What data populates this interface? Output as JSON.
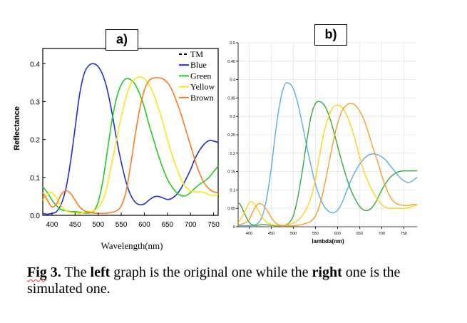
{
  "panel_labels": {
    "a": "a)",
    "b": "b)"
  },
  "caption": {
    "fig": "Fig",
    "num": " 3.",
    "t1": " The ",
    "left": "left",
    "t2": " graph is the original one while the ",
    "right": "right",
    "t3": " one is the simulated one."
  },
  "chart_data": [
    {
      "type": "line",
      "title": "",
      "xlabel": "Wavelength(nm)",
      "ylabel": "Reflectance",
      "xlim": [
        380,
        760
      ],
      "ylim": [
        0,
        0.44
      ],
      "xticks": [
        "400",
        "450",
        "500",
        "550",
        "600",
        "650",
        "700",
        "750"
      ],
      "yticks": [
        "0.0",
        "0.1",
        "0.2",
        "0.3",
        "0.4"
      ],
      "legend_position": "top-right",
      "legend": [
        "TM",
        "Blue",
        "Green",
        "Yellow",
        "Brown"
      ],
      "series": [
        {
          "name": "TM",
          "color": "#000000",
          "dashed": true,
          "x": [],
          "y": []
        },
        {
          "name": "Blue",
          "color": "#1f2fd0",
          "x": [
            380,
            390,
            400,
            410,
            420,
            430,
            440,
            450,
            460,
            470,
            480,
            490,
            500,
            510,
            520,
            530,
            540,
            550,
            560,
            570,
            580,
            590,
            600,
            610,
            620,
            630,
            640,
            650,
            660,
            670,
            680,
            690,
            700,
            710,
            720,
            730,
            740,
            750,
            760
          ],
          "y": [
            0.005,
            0.003,
            0.005,
            0.01,
            0.03,
            0.07,
            0.14,
            0.23,
            0.32,
            0.375,
            0.395,
            0.4,
            0.392,
            0.37,
            0.33,
            0.27,
            0.2,
            0.14,
            0.09,
            0.055,
            0.035,
            0.028,
            0.03,
            0.04,
            0.048,
            0.05,
            0.046,
            0.042,
            0.045,
            0.055,
            0.072,
            0.095,
            0.12,
            0.15,
            0.172,
            0.188,
            0.197,
            0.196,
            0.192
          ]
        },
        {
          "name": "Green",
          "color": "#22cc22",
          "x": [
            380,
            390,
            400,
            410,
            420,
            430,
            440,
            450,
            460,
            470,
            480,
            490,
            500,
            510,
            520,
            530,
            540,
            550,
            560,
            570,
            580,
            590,
            600,
            610,
            620,
            630,
            640,
            650,
            660,
            670,
            680,
            690,
            700,
            710,
            720,
            730,
            740,
            750,
            760
          ],
          "y": [
            0.075,
            0.06,
            0.04,
            0.025,
            0.015,
            0.012,
            0.01,
            0.01,
            0.008,
            0.006,
            0.006,
            0.01,
            0.035,
            0.09,
            0.17,
            0.25,
            0.31,
            0.345,
            0.36,
            0.358,
            0.345,
            0.32,
            0.285,
            0.24,
            0.2,
            0.16,
            0.125,
            0.095,
            0.075,
            0.06,
            0.052,
            0.052,
            0.06,
            0.072,
            0.082,
            0.09,
            0.1,
            0.115,
            0.13
          ]
        },
        {
          "name": "Yellow",
          "color": "#ffe21a",
          "x": [
            380,
            390,
            400,
            410,
            420,
            430,
            440,
            450,
            460,
            470,
            480,
            490,
            500,
            510,
            520,
            530,
            540,
            550,
            560,
            570,
            580,
            590,
            600,
            610,
            620,
            630,
            640,
            650,
            660,
            670,
            680,
            690,
            700,
            710,
            720,
            730,
            740,
            750,
            760
          ],
          "y": [
            0.04,
            0.055,
            0.06,
            0.045,
            0.025,
            0.012,
            0.008,
            0.006,
            0.005,
            0.008,
            0.01,
            0.012,
            0.02,
            0.04,
            0.08,
            0.14,
            0.2,
            0.26,
            0.31,
            0.345,
            0.36,
            0.365,
            0.36,
            0.345,
            0.32,
            0.285,
            0.245,
            0.2,
            0.16,
            0.125,
            0.095,
            0.075,
            0.065,
            0.062,
            0.062,
            0.06,
            0.055,
            0.052,
            0.055
          ]
        },
        {
          "name": "Brown",
          "color": "#ff7b1a",
          "x": [
            380,
            390,
            400,
            410,
            420,
            430,
            440,
            450,
            460,
            470,
            480,
            490,
            500,
            510,
            520,
            530,
            540,
            550,
            560,
            570,
            580,
            590,
            600,
            610,
            620,
            630,
            640,
            650,
            660,
            670,
            680,
            690,
            700,
            710,
            720,
            730,
            740,
            750,
            760
          ],
          "y": [
            0.06,
            0.04,
            0.022,
            0.03,
            0.055,
            0.065,
            0.058,
            0.04,
            0.022,
            0.012,
            0.008,
            0.006,
            0.005,
            0.005,
            0.006,
            0.008,
            0.012,
            0.025,
            0.06,
            0.13,
            0.21,
            0.28,
            0.33,
            0.355,
            0.362,
            0.363,
            0.36,
            0.35,
            0.33,
            0.3,
            0.265,
            0.225,
            0.185,
            0.145,
            0.11,
            0.085,
            0.07,
            0.062,
            0.06
          ]
        }
      ]
    },
    {
      "type": "line",
      "title": "",
      "xlabel": "lambda(nm)",
      "ylabel": "",
      "xlim": [
        375,
        780
      ],
      "ylim": [
        0,
        0.5
      ],
      "xticks": [
        "400",
        "450",
        "500",
        "550",
        "600",
        "650",
        "700",
        "750"
      ],
      "yticks": [
        "0",
        "0.05",
        "0.1",
        "0.15",
        "0.2",
        "0.25",
        "0.3",
        "0.35",
        "0.4",
        "0.45",
        "0.5"
      ],
      "grid": true,
      "series": [
        {
          "color": "#5aaee0",
          "x": [
            375,
            390,
            400,
            410,
            420,
            430,
            440,
            450,
            460,
            470,
            480,
            490,
            500,
            510,
            520,
            530,
            540,
            550,
            560,
            570,
            580,
            590,
            600,
            610,
            620,
            630,
            640,
            650,
            660,
            670,
            680,
            690,
            700,
            710,
            720,
            730,
            740,
            750,
            760,
            770,
            780
          ],
          "y": [
            0.003,
            0.003,
            0.003,
            0.004,
            0.01,
            0.03,
            0.08,
            0.16,
            0.26,
            0.34,
            0.385,
            0.39,
            0.375,
            0.335,
            0.28,
            0.22,
            0.165,
            0.115,
            0.08,
            0.055,
            0.042,
            0.038,
            0.045,
            0.065,
            0.095,
            0.125,
            0.15,
            0.17,
            0.185,
            0.195,
            0.198,
            0.196,
            0.19,
            0.18,
            0.165,
            0.15,
            0.135,
            0.125,
            0.12,
            0.125,
            0.135
          ]
        },
        {
          "color": "#3aa83a",
          "x": [
            375,
            380,
            390,
            400,
            410,
            420,
            430,
            440,
            450,
            460,
            470,
            480,
            490,
            500,
            510,
            520,
            530,
            540,
            550,
            560,
            570,
            580,
            590,
            600,
            610,
            620,
            630,
            640,
            650,
            660,
            670,
            680,
            690,
            700,
            710,
            720,
            730,
            740,
            750,
            760,
            770,
            780
          ],
          "y": [
            0.065,
            0.06,
            0.035,
            0.012,
            0.004,
            0.004,
            0.006,
            0.005,
            0.004,
            0.003,
            0.003,
            0.004,
            0.01,
            0.03,
            0.08,
            0.15,
            0.23,
            0.3,
            0.335,
            0.34,
            0.33,
            0.305,
            0.265,
            0.22,
            0.175,
            0.135,
            0.1,
            0.075,
            0.055,
            0.045,
            0.045,
            0.055,
            0.075,
            0.1,
            0.12,
            0.135,
            0.145,
            0.15,
            0.152,
            0.152,
            0.152,
            0.152
          ]
        },
        {
          "color": "#ffd21a",
          "x": [
            375,
            390,
            400,
            405,
            410,
            420,
            430,
            440,
            450,
            460,
            470,
            480,
            490,
            500,
            510,
            520,
            530,
            540,
            550,
            560,
            570,
            580,
            590,
            600,
            610,
            620,
            630,
            640,
            650,
            660,
            670,
            680,
            690,
            700,
            710,
            720,
            730,
            740,
            750,
            760,
            770,
            780
          ],
          "y": [
            0.01,
            0.04,
            0.066,
            0.068,
            0.064,
            0.045,
            0.025,
            0.012,
            0.006,
            0.004,
            0.004,
            0.004,
            0.006,
            0.01,
            0.018,
            0.03,
            0.05,
            0.08,
            0.13,
            0.2,
            0.26,
            0.3,
            0.325,
            0.33,
            0.325,
            0.305,
            0.275,
            0.235,
            0.19,
            0.15,
            0.12,
            0.095,
            0.075,
            0.06,
            0.052,
            0.05,
            0.05,
            0.05,
            0.05,
            0.052,
            0.055,
            0.06
          ]
        },
        {
          "color": "#f2a02a",
          "x": [
            375,
            390,
            400,
            410,
            420,
            430,
            440,
            450,
            460,
            470,
            480,
            490,
            500,
            510,
            520,
            530,
            540,
            550,
            560,
            570,
            580,
            590,
            600,
            610,
            620,
            630,
            640,
            650,
            660,
            670,
            680,
            690,
            700,
            710,
            720,
            730,
            740,
            750,
            760,
            770,
            780
          ],
          "y": [
            0.005,
            0.01,
            0.02,
            0.045,
            0.062,
            0.06,
            0.045,
            0.025,
            0.01,
            0.004,
            0.003,
            0.003,
            0.003,
            0.004,
            0.006,
            0.01,
            0.015,
            0.03,
            0.06,
            0.11,
            0.17,
            0.23,
            0.28,
            0.315,
            0.33,
            0.335,
            0.33,
            0.315,
            0.29,
            0.255,
            0.215,
            0.18,
            0.14,
            0.105,
            0.08,
            0.065,
            0.06,
            0.058,
            0.058,
            0.06,
            0.06
          ]
        }
      ]
    }
  ]
}
